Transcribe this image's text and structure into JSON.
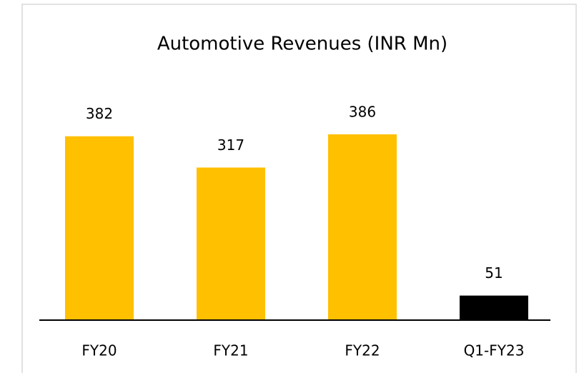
{
  "chart_data": {
    "type": "bar",
    "title": "Automotive Revenues (INR Mn)",
    "categories": [
      "FY20",
      "FY21",
      "FY22",
      "Q1-FY23"
    ],
    "values": [
      382,
      317,
      386,
      51
    ],
    "colors": [
      "#ffc000",
      "#ffc000",
      "#ffc000",
      "#000000"
    ]
  }
}
